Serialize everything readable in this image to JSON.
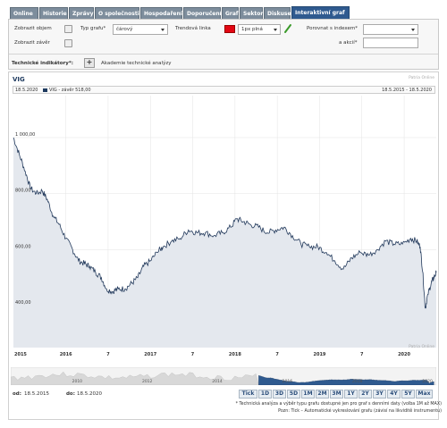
{
  "tabs": [
    {
      "label": "Online",
      "w": 32
    },
    {
      "label": "Historie",
      "w": 32
    },
    {
      "label": "Zprávy",
      "w": 28
    },
    {
      "label": "O společnosti",
      "w": 50
    },
    {
      "label": "Hospodaření",
      "w": 47
    },
    {
      "label": "Doporučení",
      "w": 42
    },
    {
      "label": "Graf",
      "w": 19
    },
    {
      "label": "Sektor",
      "w": 26
    },
    {
      "label": "Diskuse",
      "w": 30
    },
    {
      "label": "Interaktivní graf",
      "w": 65
    }
  ],
  "controls": {
    "show_volume": "Zobrazit objem",
    "show_close": "Zobrazit závěr",
    "chart_type_label": "Typ grafu*",
    "chart_type_value": "čárový",
    "trend_line_label": "Trendová linka",
    "line_style_value": "1px plná",
    "compare_index_label": "Porovnat s indexem*",
    "compare_stock_label": "a akcií*",
    "tech_indicators_label": "Technické indikátory*:",
    "tech_analysis_label": "Akademie technické analýzy"
  },
  "colors": {
    "trend_line": "#e30613"
  },
  "chart": {
    "title": "VIG",
    "watermark": "Patria Online",
    "info_date": "18.5.2020",
    "info_series": "VIG - závěr 518,00",
    "info_range": "18.5.2015 - 18.5.2020"
  },
  "chart_data": {
    "type": "line",
    "series_name": "VIG - závěr",
    "ylim": [
      250,
      1150
    ],
    "y_ticks": [
      "1 000,00",
      "800,00",
      "600,00",
      "400,00"
    ],
    "x_ticks": [
      "2015",
      "2016",
      "7",
      "2017",
      "7",
      "2018",
      "7",
      "2019",
      "7",
      "2020",
      "7"
    ],
    "x_start": 2015.38,
    "x_end": 2020.38,
    "points": [
      [
        2015.38,
        1000
      ],
      [
        2015.45,
        940
      ],
      [
        2015.52,
        880
      ],
      [
        2015.58,
        820
      ],
      [
        2015.65,
        800
      ],
      [
        2015.72,
        810
      ],
      [
        2015.78,
        780
      ],
      [
        2015.85,
        720
      ],
      [
        2015.92,
        690
      ],
      [
        2016.0,
        640
      ],
      [
        2016.08,
        600
      ],
      [
        2016.15,
        560
      ],
      [
        2016.22,
        550
      ],
      [
        2016.28,
        540
      ],
      [
        2016.35,
        520
      ],
      [
        2016.42,
        500
      ],
      [
        2016.48,
        460
      ],
      [
        2016.55,
        450
      ],
      [
        2016.62,
        460
      ],
      [
        2016.7,
        460
      ],
      [
        2016.78,
        480
      ],
      [
        2016.85,
        500
      ],
      [
        2016.92,
        540
      ],
      [
        2017.0,
        560
      ],
      [
        2017.08,
        590
      ],
      [
        2017.15,
        610
      ],
      [
        2017.25,
        630
      ],
      [
        2017.35,
        640
      ],
      [
        2017.45,
        670
      ],
      [
        2017.55,
        660
      ],
      [
        2017.65,
        660
      ],
      [
        2017.75,
        650
      ],
      [
        2017.85,
        660
      ],
      [
        2017.95,
        680
      ],
      [
        2018.02,
        710
      ],
      [
        2018.1,
        700
      ],
      [
        2018.18,
        690
      ],
      [
        2018.28,
        680
      ],
      [
        2018.38,
        660
      ],
      [
        2018.48,
        670
      ],
      [
        2018.58,
        680
      ],
      [
        2018.68,
        650
      ],
      [
        2018.78,
        620
      ],
      [
        2018.88,
        610
      ],
      [
        2018.98,
        610
      ],
      [
        2019.08,
        590
      ],
      [
        2019.18,
        560
      ],
      [
        2019.28,
        530
      ],
      [
        2019.38,
        570
      ],
      [
        2019.48,
        590
      ],
      [
        2019.58,
        580
      ],
      [
        2019.68,
        600
      ],
      [
        2019.78,
        630
      ],
      [
        2019.88,
        620
      ],
      [
        2019.98,
        620
      ],
      [
        2020.08,
        640
      ],
      [
        2020.15,
        630
      ],
      [
        2020.19,
        610
      ],
      [
        2020.22,
        520
      ],
      [
        2020.25,
        390
      ],
      [
        2020.28,
        440
      ],
      [
        2020.32,
        480
      ],
      [
        2020.35,
        500
      ],
      [
        2020.38,
        518
      ]
    ]
  },
  "navigator": {
    "labels": [
      "2010",
      "2012",
      "2014",
      "2016",
      "2018",
      "2020"
    ]
  },
  "range": {
    "from_label": "od:",
    "from_value": "18.5.2015",
    "to_label": "do:",
    "to_value": "18.5.2020"
  },
  "periods": [
    "Tick",
    "1D",
    "3D",
    "5D",
    "1M",
    "2M",
    "3M",
    "1Y",
    "2Y",
    "3Y",
    "4Y",
    "5Y",
    "Max"
  ],
  "notes": {
    "line1": "* Technická analýza a výběr typu grafu dostupné jen pro graf s denními daty (volba 1M až MAX)",
    "line2": "Pozn: Tick – Automatické vykreslování grafu (závisí na likviditě instrumentu)"
  }
}
